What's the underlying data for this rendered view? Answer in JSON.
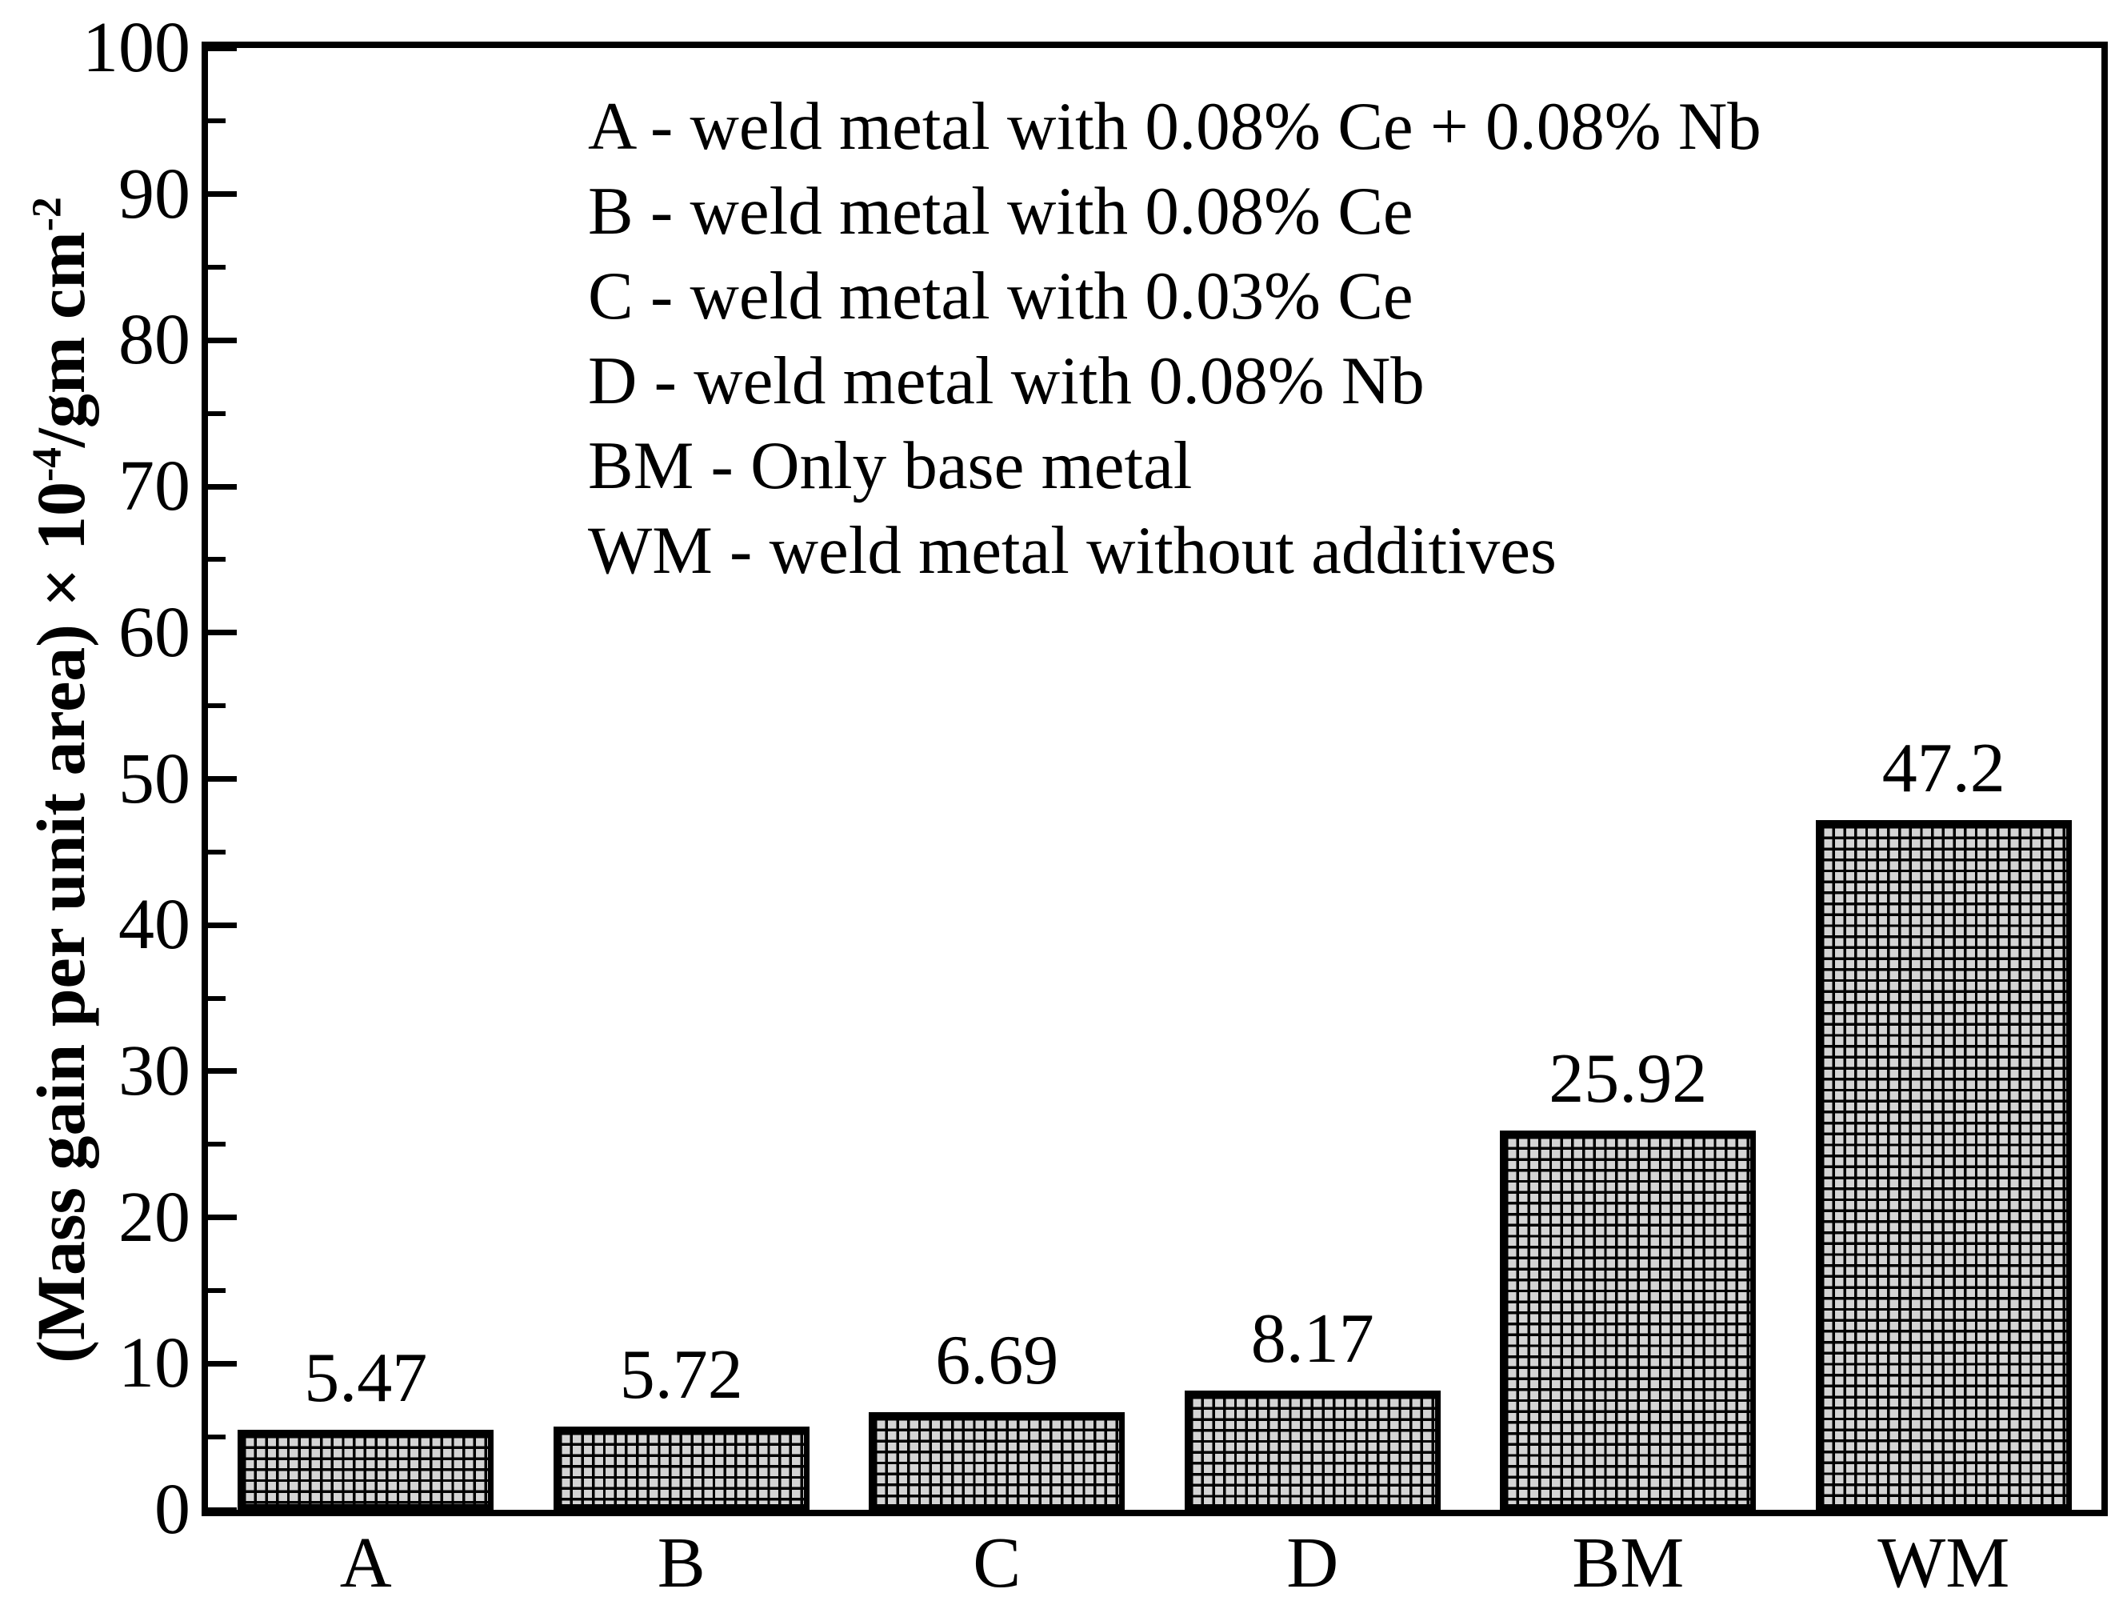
{
  "figure": {
    "background": "#ffffff",
    "text_color": "#000000",
    "bar_cell_fill": "#d4d4d4",
    "bar_grid_line": "#000000",
    "frame_color": "#000000"
  },
  "y_axis": {
    "title_parts": {
      "main": "(Mass gain per unit area) × 10",
      "sup1": "-4",
      "mid": "/gm cm",
      "sup2": "-2"
    },
    "ticks": [
      0,
      10,
      20,
      30,
      40,
      50,
      60,
      70,
      80,
      90,
      100
    ],
    "minor_ticks": [
      5,
      15,
      25,
      35,
      45,
      55,
      65,
      75,
      85,
      95
    ]
  },
  "chart_data": {
    "type": "bar",
    "categories": [
      "A",
      "B",
      "C",
      "D",
      "BM",
      "WM"
    ],
    "values": [
      5.47,
      5.72,
      6.69,
      8.17,
      25.92,
      47.2
    ],
    "value_labels": [
      "5.47",
      "5.72",
      "6.69",
      "8.17",
      "25.92",
      "47.2"
    ],
    "title": "",
    "xlabel": "",
    "ylabel": "(Mass gain per unit area) × 10^-4/gm cm^-2",
    "ylim": [
      0,
      100
    ],
    "ytick_step": 10,
    "grid": false,
    "bar_pattern": "square-mesh",
    "legend_position": "upper-center-inside",
    "legend": [
      "A - weld metal with 0.08% Ce + 0.08% Nb",
      "B - weld metal with 0.08% Ce",
      "C - weld metal with 0.03% Ce",
      "D - weld metal with 0.08% Nb",
      "BM - Only base metal",
      "WM - weld metal without additives"
    ]
  }
}
